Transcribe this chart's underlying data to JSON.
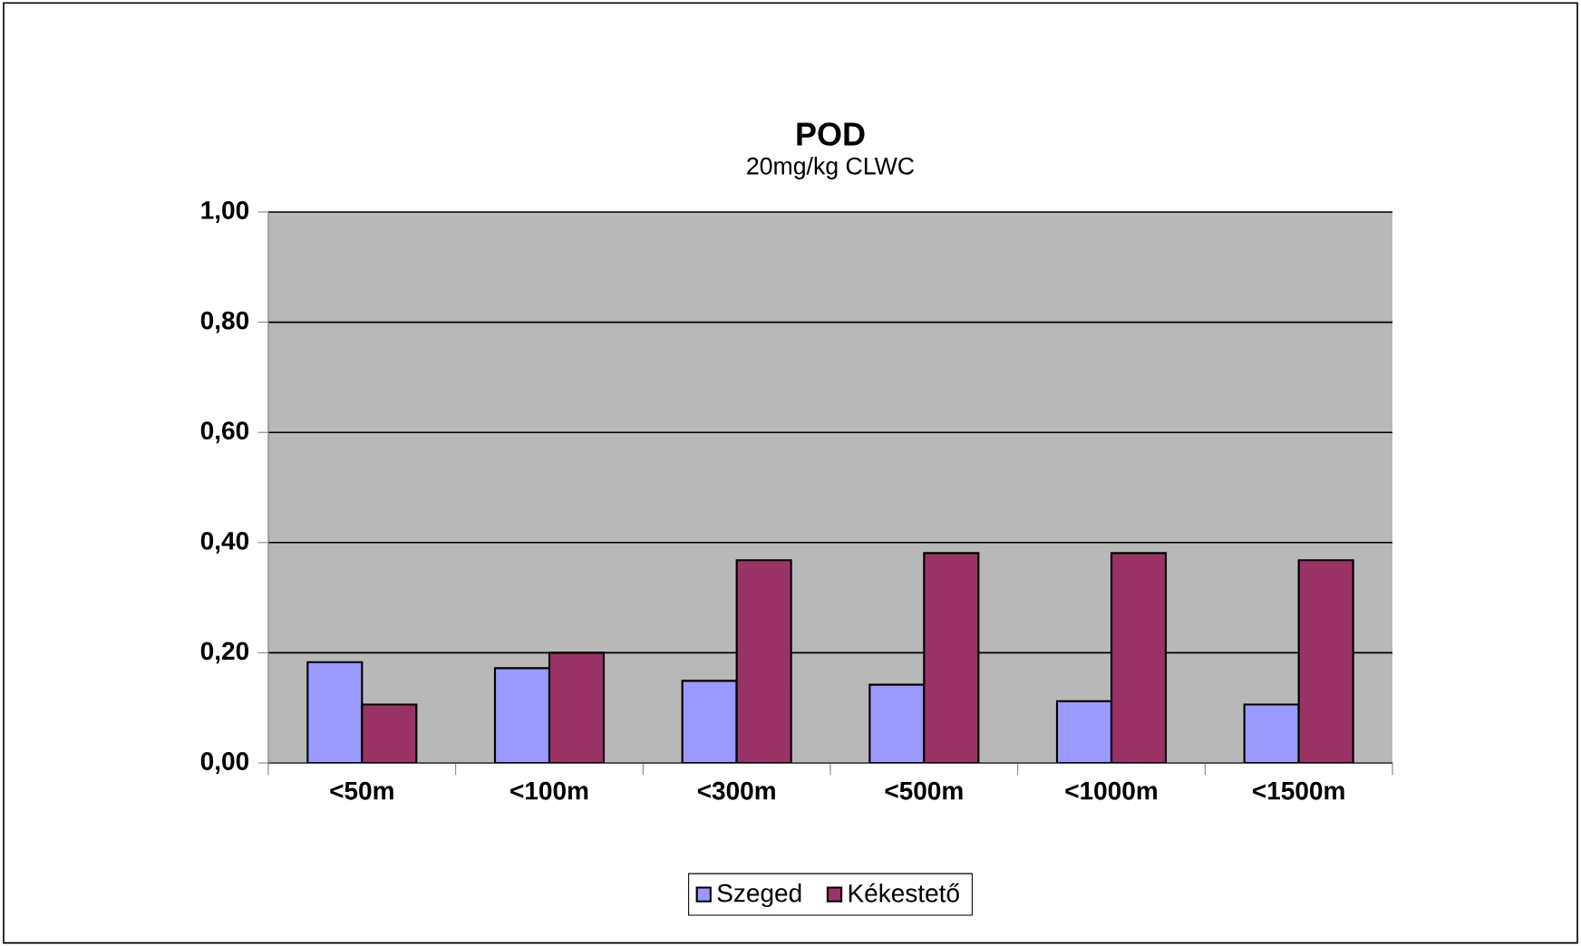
{
  "chart_data": {
    "type": "bar",
    "title": "POD",
    "subtitle": "20mg/kg CLWC",
    "categories": [
      "<50m",
      "<100m",
      "<300m",
      "<500m",
      "<1000m",
      "<1500m"
    ],
    "series": [
      {
        "name": "Szeged",
        "color": "#9999ff",
        "values": [
          0.183,
          0.172,
          0.149,
          0.142,
          0.112,
          0.106
        ]
      },
      {
        "name": "Kékestető",
        "color": "#993366",
        "values": [
          0.106,
          0.2,
          0.368,
          0.381,
          0.381,
          0.368
        ]
      }
    ],
    "ylim": [
      0,
      1
    ],
    "yticks": [
      {
        "value": 0,
        "label": "0,00"
      },
      {
        "value": 0.2,
        "label": "0,20"
      },
      {
        "value": 0.4,
        "label": "0,40"
      },
      {
        "value": 0.6,
        "label": "0,60"
      },
      {
        "value": 0.8,
        "label": "0,80"
      },
      {
        "value": 1,
        "label": "1,00"
      }
    ],
    "grid": "y",
    "legend": "bottom"
  }
}
